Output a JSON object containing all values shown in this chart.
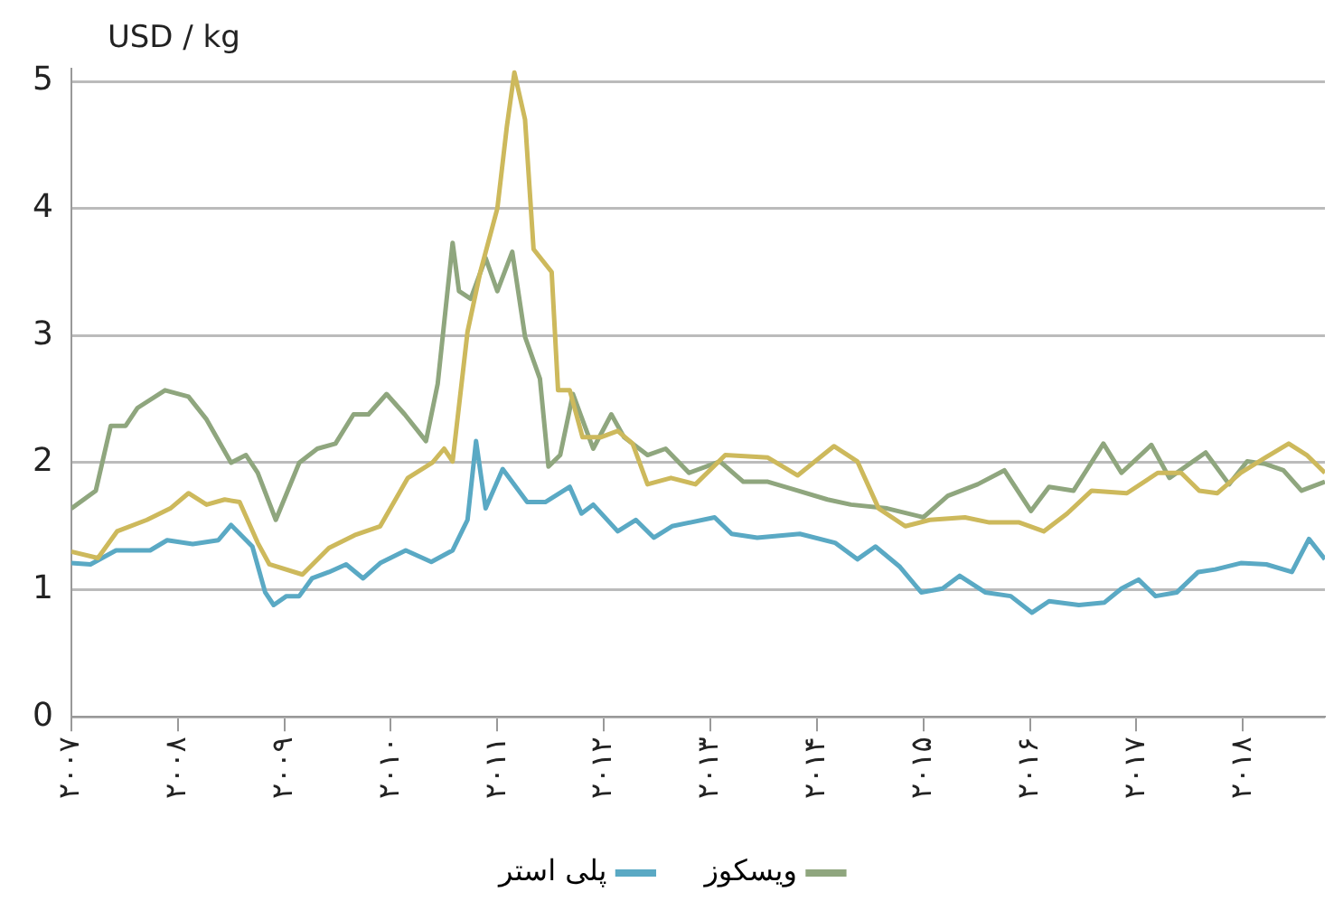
{
  "chart_data": {
    "type": "line",
    "ylabel": "USD / kg",
    "xlim": [
      2007,
      2018.77
    ],
    "xticks": [
      {
        "value": 2007,
        "label": "۲۰۰۷"
      },
      {
        "value": 2008,
        "label": "۲۰۰۸"
      },
      {
        "value": 2009,
        "label": "۲۰۰۹"
      },
      {
        "value": 2010,
        "label": "۲۰۱۰"
      },
      {
        "value": 2011,
        "label": "۲۰۱۱"
      },
      {
        "value": 2012,
        "label": "۲۰۱۲"
      },
      {
        "value": 2013,
        "label": "۲۰۱۳"
      },
      {
        "value": 2014,
        "label": "۲۰۱۴"
      },
      {
        "value": 2015,
        "label": "۲۰۱۵"
      },
      {
        "value": 2016,
        "label": "۲۰۱۶"
      },
      {
        "value": 2017,
        "label": "۲۰۱۷"
      },
      {
        "value": 2018,
        "label": "۲۰۱۸"
      }
    ],
    "ylim": [
      0,
      5.1
    ],
    "yticks": [
      0,
      1,
      2,
      3,
      4,
      5
    ],
    "grid": "y",
    "legend": "bottom",
    "marker": "none",
    "line_style": "solid",
    "series": [
      {
        "color": "#cdb95c",
        "x": [
          2007,
          2007.25,
          2007.43,
          2007.71,
          2007.93,
          2008.1,
          2008.27,
          2008.44,
          2008.58,
          2008.75,
          2008.86,
          2009.17,
          2009.42,
          2009.66,
          2009.9,
          2010.16,
          2010.39,
          2010.5,
          2010.58,
          2010.72,
          2010.84,
          2011,
          2011.09,
          2011.16,
          2011.26,
          2011.34,
          2011.51,
          2011.57,
          2011.68,
          2011.8,
          2011.97,
          2012.13,
          2012.27,
          2012.41,
          2012.63,
          2012.86,
          2013.14,
          2013.54,
          2013.82,
          2014.16,
          2014.38,
          2014.58,
          2014.83,
          2015.06,
          2015.39,
          2015.62,
          2015.9,
          2016.13,
          2016.35,
          2016.58,
          2016.91,
          2017.2,
          2017.42,
          2017.59,
          2017.76,
          2017.98,
          2018.21,
          2018.43,
          2018.6,
          2018.77
        ],
        "values": [
          1.3,
          1.25,
          1.46,
          1.55,
          1.64,
          1.76,
          1.67,
          1.71,
          1.69,
          1.37,
          1.2,
          1.12,
          1.33,
          1.43,
          1.5,
          1.88,
          2.0,
          2.11,
          2.01,
          3.03,
          3.5,
          4.0,
          4.65,
          5.07,
          4.7,
          3.68,
          3.5,
          2.57,
          2.57,
          2.2,
          2.2,
          2.25,
          2.15,
          1.83,
          1.88,
          1.83,
          2.06,
          2.04,
          1.9,
          2.13,
          2.01,
          1.64,
          1.5,
          1.55,
          1.57,
          1.53,
          1.53,
          1.46,
          1.6,
          1.78,
          1.76,
          1.92,
          1.92,
          1.78,
          1.76,
          1.92,
          2.04,
          2.15,
          2.06,
          1.92
        ]
      },
      {
        "name": "ویسکوز",
        "color": "#8fa67e",
        "x": [
          2007,
          2007.23,
          2007.37,
          2007.51,
          2007.62,
          2007.88,
          2008.1,
          2008.27,
          2008.5,
          2008.64,
          2008.75,
          2008.92,
          2009.14,
          2009.31,
          2009.48,
          2009.65,
          2009.79,
          2009.96,
          2010.13,
          2010.33,
          2010.44,
          2010.58,
          2010.64,
          2010.75,
          2010.89,
          2011,
          2011.14,
          2011.26,
          2011.4,
          2011.48,
          2011.59,
          2011.71,
          2011.9,
          2012.07,
          2012.19,
          2012.41,
          2012.58,
          2012.8,
          2013.09,
          2013.31,
          2013.54,
          2013.82,
          2014.1,
          2014.32,
          2014.66,
          2015,
          2015.23,
          2015.51,
          2015.76,
          2016.01,
          2016.18,
          2016.41,
          2016.69,
          2016.86,
          2017.14,
          2017.31,
          2017.65,
          2017.87,
          2018.04,
          2018.21,
          2018.38,
          2018.55,
          2018.77
        ],
        "values": [
          1.64,
          1.78,
          2.29,
          2.29,
          2.43,
          2.57,
          2.52,
          2.34,
          2.0,
          2.06,
          1.92,
          1.55,
          2.0,
          2.11,
          2.15,
          2.38,
          2.38,
          2.54,
          2.38,
          2.17,
          2.62,
          3.73,
          3.35,
          3.29,
          3.61,
          3.35,
          3.66,
          2.99,
          2.66,
          1.97,
          2.06,
          2.54,
          2.11,
          2.38,
          2.2,
          2.06,
          2.11,
          1.92,
          2.01,
          1.85,
          1.85,
          1.78,
          1.71,
          1.67,
          1.64,
          1.57,
          1.74,
          1.83,
          1.94,
          1.62,
          1.81,
          1.78,
          2.15,
          1.92,
          2.14,
          1.88,
          2.08,
          1.83,
          2.01,
          1.99,
          1.94,
          1.78,
          1.85
        ]
      },
      {
        "name": "پلی استر",
        "color": "#5aa9c4",
        "x": [
          2007,
          2007.18,
          2007.42,
          2007.74,
          2007.9,
          2008.14,
          2008.38,
          2008.5,
          2008.7,
          2008.82,
          2008.9,
          2009.02,
          2009.14,
          2009.26,
          2009.42,
          2009.58,
          2009.74,
          2009.9,
          2010.14,
          2010.38,
          2010.58,
          2010.72,
          2010.8,
          2010.89,
          2011.05,
          2011.28,
          2011.45,
          2011.68,
          2011.79,
          2011.9,
          2012.13,
          2012.3,
          2012.47,
          2012.64,
          2013.04,
          2013.2,
          2013.44,
          2013.84,
          2014.17,
          2014.38,
          2014.55,
          2014.78,
          2014.98,
          2015.18,
          2015.34,
          2015.58,
          2015.82,
          2016.02,
          2016.18,
          2016.46,
          2016.7,
          2016.86,
          2017.02,
          2017.18,
          2017.38,
          2017.58,
          2017.74,
          2017.98,
          2018.22,
          2018.46,
          2018.62,
          2018.77
        ],
        "values": [
          1.21,
          1.2,
          1.31,
          1.31,
          1.39,
          1.36,
          1.39,
          1.51,
          1.34,
          0.98,
          0.88,
          0.95,
          0.95,
          1.09,
          1.14,
          1.2,
          1.09,
          1.21,
          1.31,
          1.22,
          1.31,
          1.55,
          2.17,
          1.64,
          1.95,
          1.69,
          1.69,
          1.81,
          1.6,
          1.67,
          1.46,
          1.55,
          1.41,
          1.5,
          1.57,
          1.44,
          1.41,
          1.44,
          1.37,
          1.24,
          1.34,
          1.18,
          0.98,
          1.01,
          1.11,
          0.98,
          0.95,
          0.82,
          0.91,
          0.88,
          0.9,
          1.01,
          1.08,
          0.95,
          0.98,
          1.14,
          1.16,
          1.21,
          1.2,
          1.14,
          1.4,
          1.24
        ]
      }
    ]
  }
}
